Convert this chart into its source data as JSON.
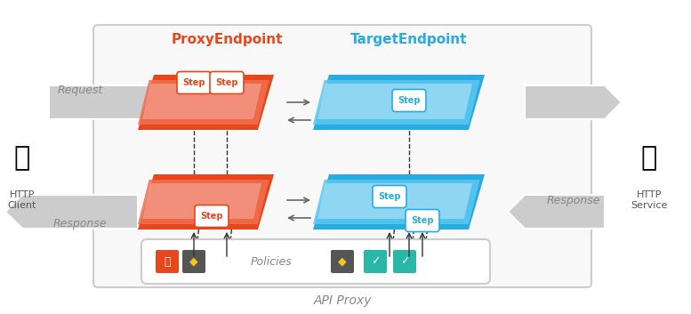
{
  "title": "API Proxy",
  "proxy_endpoint_label": "ProxyEndpoint",
  "target_endpoint_label": "TargetEndpoint",
  "proxy_color_dark": "#E8471C",
  "proxy_color_mid": "#F07050",
  "proxy_color_light": "#F5A090",
  "target_color_dark": "#29ABE2",
  "target_color_mid": "#5BC8F0",
  "target_color_light": "#A8DFF5",
  "arrow_color": "#AAAAAA",
  "step_fill": "#FFFFFF",
  "step_text_proxy": "#E8471C",
  "step_text_target": "#29ABE2",
  "border_color": "#CCCCCC",
  "label_color": "#888888",
  "dashed_color": "#333333",
  "bg_color": "#FFFFFF",
  "box_bg": "#F8F8F8",
  "request_label": "Request",
  "response_label": "Response",
  "http_client_label": "HTTP\nClient",
  "http_service_label": "HTTP\nService",
  "policies_label": "Policies",
  "step_label": "Step"
}
